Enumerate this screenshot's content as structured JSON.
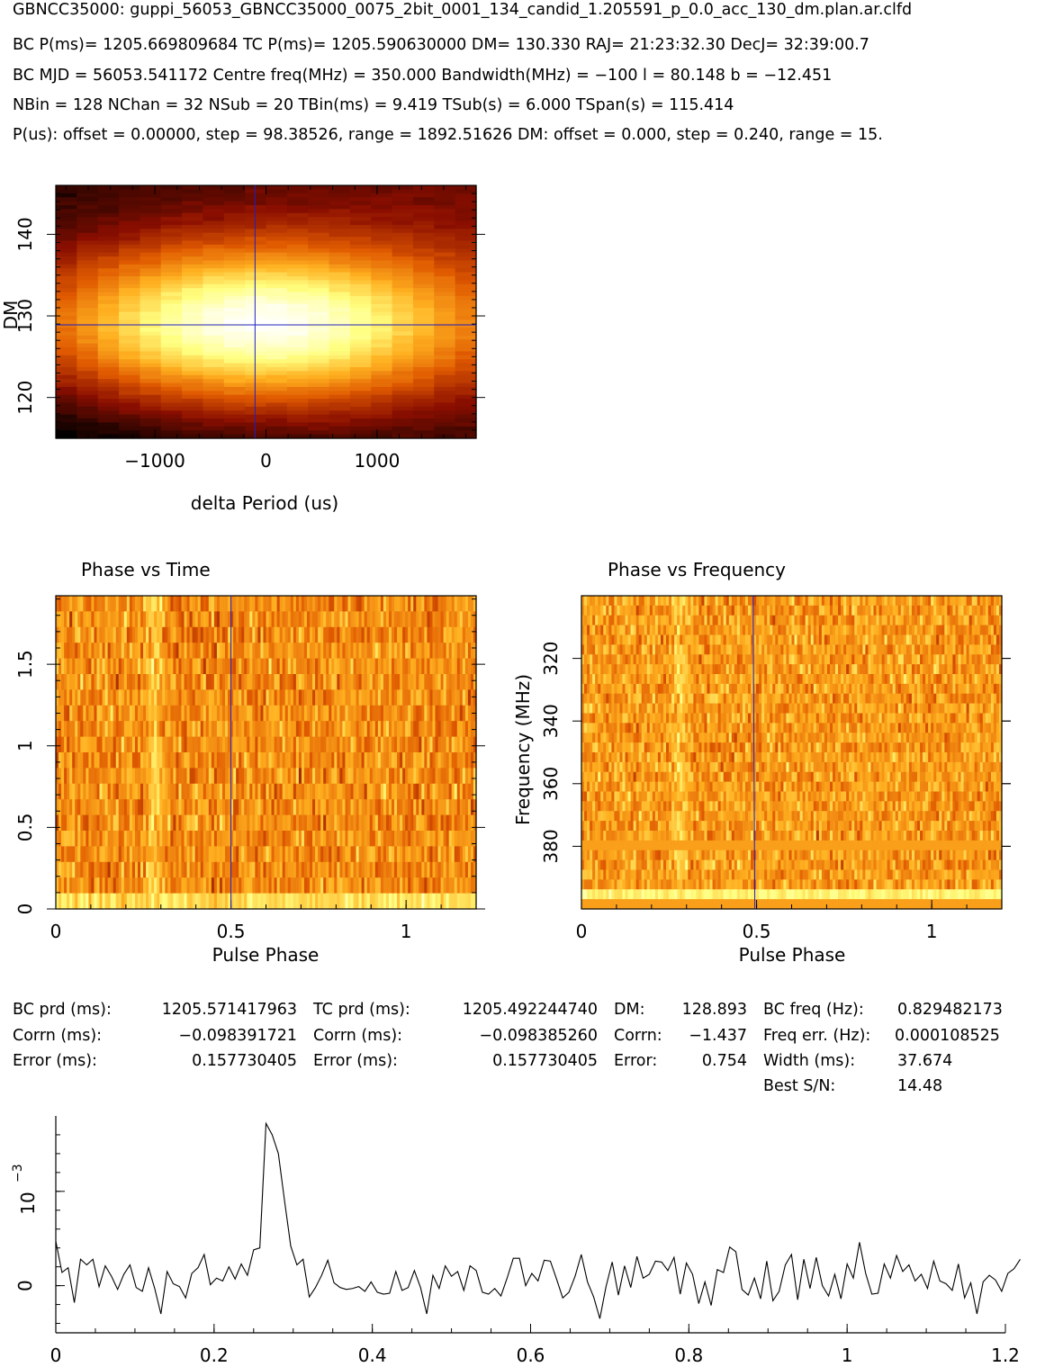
{
  "header": {
    "line1": "GBNCC35000: guppi_56053_GBNCC35000_0075_2bit_0001_134_candid_1.205591_p_0.0_acc_130_dm.plan.ar.clfd",
    "line2": "BC P(ms)= 1205.669809684 TC P(ms)= 1205.590630000 DM= 130.330 RAJ= 21:23:32.30 DecJ= 32:39:00.7",
    "line3": "BC MJD = 56053.541172 Centre freq(MHz) = 350.000 Bandwidth(MHz) = −100 l = 80.148 b = −12.451",
    "line4": "NBin = 128 NChan = 32 NSub = 20 TBin(ms) = 9.419 TSub(s) = 6.000 TSpan(s) = 115.414",
    "line5": "P(us): offset = 0.00000, step = 98.38526, range = 1892.51626 DM: offset = 0.000, step = 0.240, range = 15."
  },
  "results": {
    "c1": {
      "r1_label": "BC prd (ms):",
      "r1_value": "1205.571417963",
      "r2_label": "Corrn (ms):",
      "r2_value": "−0.098391721",
      "r3_label": "Error (ms):",
      "r3_value": "0.157730405"
    },
    "c2": {
      "r1_label": "TC prd (ms):",
      "r1_value": "1205.492244740",
      "r2_label": "Corrn (ms):",
      "r2_value": "−0.098385260",
      "r3_label": "Error (ms):",
      "r3_value": "0.157730405"
    },
    "c3": {
      "r1_label": "DM:",
      "r1_value": "128.893",
      "r2_label": "Corrn:",
      "r2_value": "−1.437",
      "r3_label": "Error:",
      "r3_value": "0.754"
    },
    "c4": {
      "r1_label": "BC freq (Hz):",
      "r1_value": "0.829482173",
      "r2_label": "Freq err. (Hz):",
      "r2_value": "0.000108525",
      "r3_label": "Width (ms):",
      "r3_value": "37.674",
      "r4_label": "Best S/N:",
      "r4_value": "14.48"
    }
  },
  "colors": {
    "colormap": [
      "#000000",
      "#8a0e00",
      "#e05a00",
      "#ffb020",
      "#ffff80",
      "#ffffff"
    ],
    "crosshair": "#2020c0"
  },
  "chart_data": [
    {
      "type": "heatmap",
      "name": "dm-period",
      "title": "",
      "xlabel": "delta Period (us)",
      "ylabel": "DM",
      "xlim": [
        -1892,
        1892
      ],
      "ylim": [
        115,
        146
      ],
      "xticks": [
        -1000,
        0,
        1000
      ],
      "yticks": [
        120,
        130,
        140
      ],
      "peak": {
        "x": -98.4,
        "y": 128.9
      },
      "crosshair": {
        "x": -98.4,
        "y": 128.9
      },
      "grid": {
        "nx": 20,
        "ny": 64
      }
    },
    {
      "type": "heatmap",
      "name": "phase-time",
      "title": "Phase vs Time",
      "xlabel": "Pulse Phase",
      "ylabel": "",
      "xlim": [
        0,
        1.2
      ],
      "ylim": [
        0,
        1.92
      ],
      "xticks": [
        0,
        0.5,
        1
      ],
      "yticks": [
        0,
        0.5,
        1,
        1.5
      ],
      "pulse_phase": 0.28,
      "marker_phase": 0.5,
      "grid": {
        "nx": 154,
        "ny": 20
      }
    },
    {
      "type": "heatmap",
      "name": "phase-frequency",
      "title": "Phase vs Frequency",
      "xlabel": "Pulse Phase",
      "ylabel": "Frequency (MHz)",
      "xlim": [
        0,
        1.2
      ],
      "ylim": [
        300,
        400
      ],
      "y_inverted": true,
      "xticks": [
        0,
        0.5,
        1
      ],
      "yticks": [
        320,
        340,
        360,
        380
      ],
      "pulse_phase": 0.28,
      "marker_phase": 0.49,
      "grid": {
        "nx": 154,
        "ny": 32
      },
      "bright_rows_mhz": [
        381,
        394
      ],
      "saturated_rows_mhz": [
        381,
        397
      ]
    },
    {
      "type": "line",
      "name": "profile",
      "title": "",
      "xlabel": "",
      "ylabel": "10^−3",
      "xlim": [
        0,
        1.2
      ],
      "ylim": [
        -5,
        18
      ],
      "xticks": [
        0,
        0.2,
        0.4,
        0.6,
        0.8,
        1.0,
        1.2
      ],
      "xtick_labels": [
        "0",
        "0.2",
        "0.4",
        "0.6",
        "0.8",
        "1",
        "1.2"
      ],
      "yticks": [
        0,
        10
      ],
      "ytick_labels": [
        "0",
        "10"
      ],
      "x_step": 0.0078125,
      "y": [
        4.7,
        1.4,
        1.9,
        -1.8,
        2.8,
        2.2,
        2.8,
        -0.1,
        2.1,
        1.0,
        -0.4,
        1.2,
        2.2,
        -0.2,
        -0.6,
        1.9,
        -0.3,
        -3.0,
        1.5,
        0.2,
        -0.1,
        -1.3,
        1.3,
        1.9,
        3.3,
        0.1,
        0.8,
        0.5,
        2.0,
        0.7,
        2.3,
        1.1,
        3.8,
        4.0,
        17.2,
        16.0,
        14.0,
        9.0,
        4.2,
        2.2,
        2.8,
        -1.2,
        -0.2,
        1.1,
        2.7,
        0.3,
        -0.2,
        -0.4,
        -0.3,
        -0.1,
        -0.6,
        0.4,
        -0.7,
        -0.9,
        -0.8,
        1.5,
        -0.5,
        -0.2,
        1.6,
        -0.2,
        -3.0,
        1.1,
        -0.3,
        2.1,
        1.0,
        1.5,
        -0.5,
        2.1,
        1.6,
        -0.7,
        -0.9,
        -0.3,
        -1.1,
        0.8,
        2.9,
        2.9,
        0.0,
        1.3,
        0.5,
        2.7,
        2.6,
        0.7,
        -1.3,
        -0.7,
        1.0,
        3.3,
        0.4,
        -1.2,
        -3.5,
        -0.1,
        2.5,
        -1.0,
        2.1,
        -0.2,
        3.1,
        0.8,
        1.2,
        2.6,
        2.5,
        1.6,
        3.0,
        -0.9,
        2.4,
        1.2,
        -1.9,
        0.4,
        -2.1,
        1.7,
        1.4,
        4.1,
        3.6,
        -0.4,
        -1.0,
        0.8,
        -1.4,
        2.6,
        -1.6,
        -0.6,
        2.2,
        3.3,
        -1.5,
        2.8,
        -0.3,
        3.0,
        0.0,
        -1.1,
        1.2,
        -1.4,
        2.3,
        0.8,
        4.6,
        1.3,
        -0.9,
        -0.8,
        2.3,
        0.8,
        3.2,
        1.5,
        2.2,
        0.5,
        1.2,
        -0.3,
        2.6,
        0.5,
        0.2,
        -0.5,
        2.3,
        -1.3,
        0.3,
        -3.0,
        0.4,
        1.1,
        0.6,
        -0.6,
        1.3,
        1.8,
        2.8
      ]
    }
  ]
}
